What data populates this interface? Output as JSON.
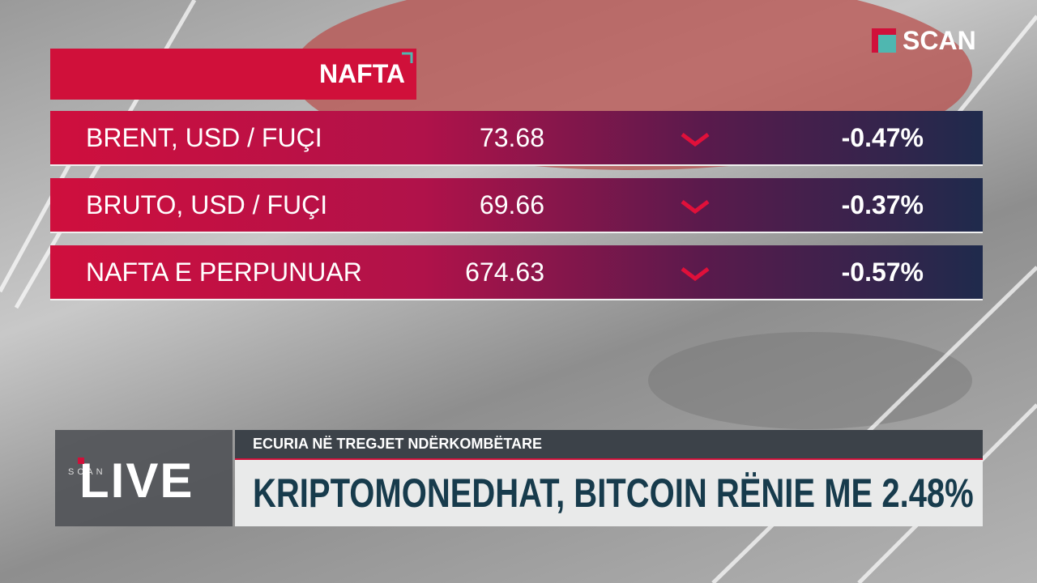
{
  "logo": "SCAN",
  "panel": {
    "title": "NAFTA",
    "rows": [
      {
        "name": "BRENT, USD / FUÇI",
        "price": "73.68",
        "change": "-0.47%"
      },
      {
        "name": "BRUTO, USD / FUÇI",
        "price": "69.66",
        "change": "-0.37%"
      },
      {
        "name": "NAFTA E PERPUNUAR",
        "price": "674.63",
        "change": "-0.57%"
      }
    ]
  },
  "lower_third": {
    "live_brand": "SCAN",
    "live": "LIVE",
    "kicker": "ECURIA NË TREGJET NDËRKOMBËTARE",
    "headline": "KRIPTOMONEDHAT, BITCOIN RËNIE ME 2.48%"
  }
}
